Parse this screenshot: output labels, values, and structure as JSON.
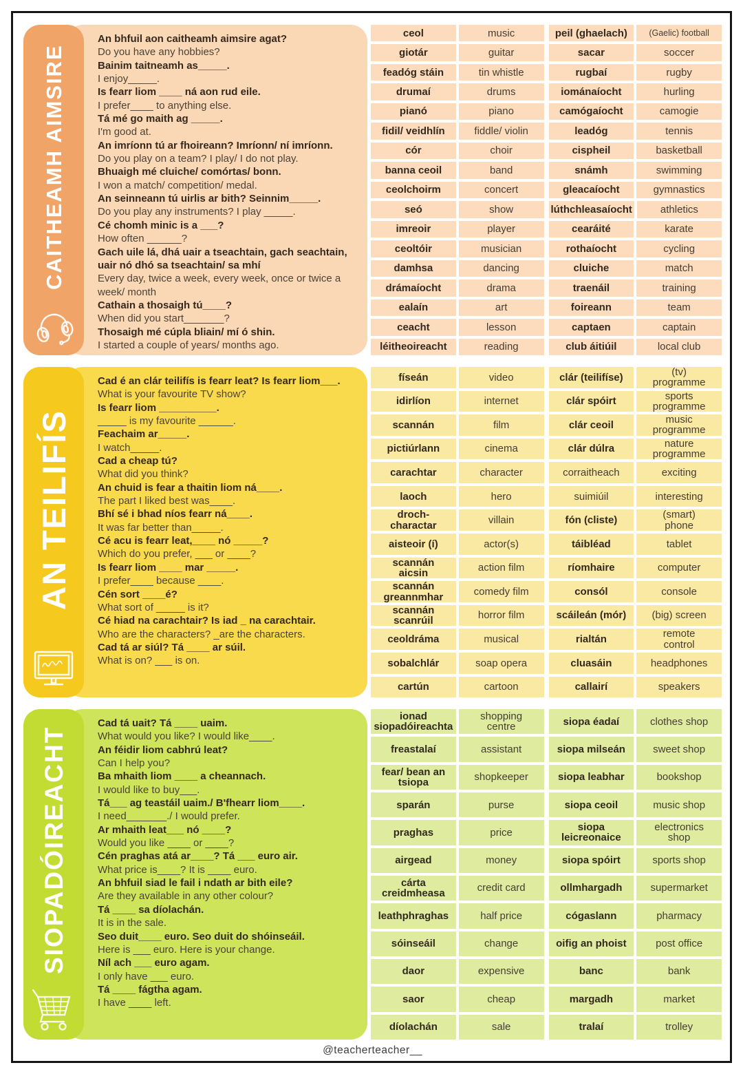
{
  "footer": {
    "handle": "@teacherteacher__"
  },
  "sections": [
    {
      "title": "CAITHEAMH AIMSIRE",
      "icon": "headphones-icon",
      "colors": {
        "sidebar": "#F1A467",
        "body": "#FBD8B5",
        "cell": "#FCDCBD"
      },
      "phrases": [
        {
          "ga": "An bhfuil aon caitheamh aimsire agat?",
          "en": "Do you have any hobbies?"
        },
        {
          "ga": "Bainim taitneamh as_____.",
          "en": "I enjoy_____."
        },
        {
          "ga": "Is fearr liom ____ ná aon rud eile.",
          "en": "I prefer____ to anything else."
        },
        {
          "ga": "Tá mé go maith ag _____.",
          "en": "I'm good at."
        },
        {
          "ga": "An imríonn tú ar fhoireann? Imríonn/ ní imríonn.",
          "en": "Do you play on a team? I play/ I do not play."
        },
        {
          "ga": "Bhuaigh mé cluiche/ comórtas/ bonn.",
          "en": "I won a match/ competition/ medal."
        },
        {
          "ga": "An seinneann tú uirlis ar bith? Seinnim_____.",
          "en": "Do you play any instruments? I play _____."
        },
        {
          "ga": "Cé chomh minic is a ___?",
          "en": "How often ______?"
        },
        {
          "ga": "Gach uile lá, dhá uair a tseachtain, gach seachtain, uair nó dhó sa tseachtain/ sa mhí",
          "en": "Every day, twice a week, every week, once or twice a week/ month"
        },
        {
          "ga": "Cathain a thosaigh tú____?",
          "en": "When did you start_______?"
        },
        {
          "ga": "Thosaigh mé cúpla bliain/ mí ó shin.",
          "en": "I started a couple of years/ months ago."
        }
      ],
      "vocab_left": [
        {
          "ga": "ceol",
          "en": "music"
        },
        {
          "ga": "giotár",
          "en": "guitar"
        },
        {
          "ga": "feadóg stáin",
          "en": "tin whistle"
        },
        {
          "ga": "drumaí",
          "en": "drums"
        },
        {
          "ga": "pianó",
          "en": "piano"
        },
        {
          "ga": "fidil/ veidhlín",
          "en": "fiddle/ violin"
        },
        {
          "ga": "cór",
          "en": "choir"
        },
        {
          "ga": "banna ceoil",
          "en": "band"
        },
        {
          "ga": "ceolchoirm",
          "en": "concert"
        },
        {
          "ga": "seó",
          "en": "show"
        },
        {
          "ga": "imreoir",
          "en": "player"
        },
        {
          "ga": "ceoltóir",
          "en": "musician"
        },
        {
          "ga": "damhsa",
          "en": "dancing"
        },
        {
          "ga": "drámaíocht",
          "en": "drama"
        },
        {
          "ga": "ealaín",
          "en": "art"
        },
        {
          "ga": "ceacht",
          "en": "lesson"
        },
        {
          "ga": "léitheoireacht",
          "en": "reading"
        }
      ],
      "vocab_right": [
        {
          "ga": "peil (ghaelach)",
          "en": "(Gaelic) football",
          "en_small": true
        },
        {
          "ga": "sacar",
          "en": "soccer"
        },
        {
          "ga": "rugbaí",
          "en": "rugby"
        },
        {
          "ga": "iománaíocht",
          "en": "hurling"
        },
        {
          "ga": "camógaíocht",
          "en": "camogie"
        },
        {
          "ga": "leadóg",
          "en": "tennis"
        },
        {
          "ga": "cispheil",
          "en": "basketball"
        },
        {
          "ga": "snámh",
          "en": "swimming"
        },
        {
          "ga": "gleacaíocht",
          "en": "gymnastics"
        },
        {
          "ga": "lúthchleasaíocht",
          "en": "athletics"
        },
        {
          "ga": "cearáité",
          "en": "karate"
        },
        {
          "ga": "rothaíocht",
          "en": "cycling"
        },
        {
          "ga": "cluiche",
          "en": "match"
        },
        {
          "ga": "traenáil",
          "en": "training"
        },
        {
          "ga": "foireann",
          "en": "team"
        },
        {
          "ga": "captaen",
          "en": "captain"
        },
        {
          "ga": "club áitiúil",
          "en": "local club"
        }
      ]
    },
    {
      "title": "AN TEILIFÍS",
      "icon": "tv-icon",
      "colors": {
        "sidebar": "#F5C91E",
        "body": "#F9DA4D",
        "cell": "#FAE9A2"
      },
      "phrases": [
        {
          "ga": "Cad é an clár teilifís is fearr leat? Is fearr liom___.",
          "en": "What is your favourite TV show?"
        },
        {
          "ga": "Is fearr liom __________.",
          "en": "_____ is my favourite ______."
        },
        {
          "ga": "Feachaim ar_____.",
          "en": "I watch_____."
        },
        {
          "ga": "Cad a cheap tú?",
          "en": "What did you think?"
        },
        {
          "ga": "An chuid is fear a thaitin liom ná____.",
          "en": "The part I liked best was____."
        },
        {
          "ga": "Bhí sé i bhad níos fearr ná____.",
          "en": "It was far better than_____."
        },
        {
          "ga": "Cé acu is fearr leat,____ nó _____?",
          "en": "Which do you prefer, ___ or ____?"
        },
        {
          "ga": "Is fearr liom ____ mar _____.",
          "en": "I prefer____ because ____."
        },
        {
          "ga": "Cén sort ____é?",
          "en": "What sort of _____ is it?"
        },
        {
          "ga": "Cé hiad na carachtair? Is iad _ na carachtair.",
          "en": "Who are the characters? _are the characters."
        },
        {
          "ga": "Cad tá ar siúl? Tá ____ ar súil.",
          "en": "What is on? ___ is on."
        }
      ],
      "vocab_left": [
        {
          "ga": "físeán",
          "en": "video"
        },
        {
          "ga": "idirlíon",
          "en": "internet"
        },
        {
          "ga": "scannán",
          "en": "film"
        },
        {
          "ga": "pictiúrlann",
          "en": "cinema"
        },
        {
          "ga": "carachtar",
          "en": "character"
        },
        {
          "ga": "laoch",
          "en": "hero"
        },
        {
          "ga": "droch-\ncharactar",
          "en": "villain"
        },
        {
          "ga": "aisteoir (í)",
          "en": "actor(s)"
        },
        {
          "ga": "scannán\naicsin",
          "en": "action film"
        },
        {
          "ga": "scannán\ngreannmhar",
          "en": "comedy film"
        },
        {
          "ga": "scannán\nscanrúil",
          "en": "horror film"
        },
        {
          "ga": "ceoldráma",
          "en": "musical"
        },
        {
          "ga": "sobalchlár",
          "en": "soap opera"
        },
        {
          "ga": "cartún",
          "en": "cartoon"
        }
      ],
      "vocab_right": [
        {
          "ga": "clár (teilifíse)",
          "en": "(tv)\nprogramme"
        },
        {
          "ga": "clár spóirt",
          "en": "sports\nprogramme"
        },
        {
          "ga": "clár ceoil",
          "en": "music\nprogramme"
        },
        {
          "ga": "clár dúlra",
          "en": "nature\nprogramme"
        },
        {
          "ga": "corraitheach",
          "en": "exciting",
          "ga_bold": false
        },
        {
          "ga": "suimiúil",
          "en": "interesting",
          "ga_bold": false
        },
        {
          "ga": "fón (cliste)",
          "en": "(smart)\nphone"
        },
        {
          "ga": "táibléad",
          "en": "tablet"
        },
        {
          "ga": "ríomhaire",
          "en": "computer"
        },
        {
          "ga": "consól",
          "en": "console"
        },
        {
          "ga": "scáileán (mór)",
          "en": "(big) screen"
        },
        {
          "ga": "rialtán",
          "en": "remote\ncontrol"
        },
        {
          "ga": "cluasáin",
          "en": "headphones"
        },
        {
          "ga": "callairí",
          "en": "speakers"
        }
      ]
    },
    {
      "title": "SIOPADÓIREACHT",
      "icon": "cart-icon",
      "colors": {
        "sidebar": "#C3DC34",
        "body": "#CEE45A",
        "cell": "#DFEC9F"
      },
      "phrases": [
        {
          "ga": "Cad tá uait? Tá ____ uaim.",
          "en": "What would you like? I would like____."
        },
        {
          "ga": "An féidir liom cabhrú leat?",
          "en": "Can I help you?"
        },
        {
          "ga": "Ba mhaith liom ____ a cheannach.",
          "en": "I would like to buy___."
        },
        {
          "ga": "Tá___ ag teastáil uaim./ B'fhearr liom____.",
          "en": "I need_______./ I would prefer."
        },
        {
          "ga": "Ar mhaith leat___ nó ____?",
          "en": "Would you like ____ or ____?"
        },
        {
          "ga": "Cén praghas atá ar____? Tá ___ euro air.",
          "en": "What price is____? It is ____ euro."
        },
        {
          "ga": "An bhfuil siad le fail i ndath ar bith eile?",
          "en": "Are they available in any other colour?"
        },
        {
          "ga": "Tá ____ sa díolachán.",
          "en": "It is in the sale."
        },
        {
          "ga": "Seo duit____ euro. Seo duit do shóinseáil.",
          "en": "Here is ___ euro. Here is your change."
        },
        {
          "ga": "Níl ach ___ euro agam.",
          "en": "I only have ___ euro."
        },
        {
          "ga": "Tá ____ fágtha agam.",
          "en": "I have ____ left."
        }
      ],
      "vocab_left": [
        {
          "ga": "ionad\nsiopadóireachta",
          "en": "shopping\ncentre"
        },
        {
          "ga": "freastalaí",
          "en": "assistant"
        },
        {
          "ga": "fear/ bean an\ntsiopa",
          "en": "shopkeeper"
        },
        {
          "ga": "sparán",
          "en": "purse"
        },
        {
          "ga": "praghas",
          "en": "price"
        },
        {
          "ga": "airgead",
          "en": "money"
        },
        {
          "ga": "cárta\ncreidmheasa",
          "en": "credit card"
        },
        {
          "ga": "leathphraghas",
          "en": "half price"
        },
        {
          "ga": "sóinseáil",
          "en": "change"
        },
        {
          "ga": "daor",
          "en": "expensive"
        },
        {
          "ga": "saor",
          "en": "cheap"
        },
        {
          "ga": "díolachán",
          "en": "sale"
        }
      ],
      "vocab_right": [
        {
          "ga": "siopa éadaí",
          "en": "clothes shop"
        },
        {
          "ga": "siopa milseán",
          "en": "sweet shop"
        },
        {
          "ga": "siopa leabhar",
          "en": "bookshop"
        },
        {
          "ga": "siopa ceoil",
          "en": "music shop"
        },
        {
          "ga": "siopa\nleicreonaice",
          "en": "electronics\nshop"
        },
        {
          "ga": "siopa spóirt",
          "en": "sports shop"
        },
        {
          "ga": "ollmhargadh",
          "en": "supermarket"
        },
        {
          "ga": "cógaslann",
          "en": "pharmacy"
        },
        {
          "ga": "oifig an phoist",
          "en": "post office"
        },
        {
          "ga": "banc",
          "en": "bank"
        },
        {
          "ga": "margadh",
          "en": "market"
        },
        {
          "ga": "tralaí",
          "en": "trolley"
        }
      ]
    }
  ]
}
